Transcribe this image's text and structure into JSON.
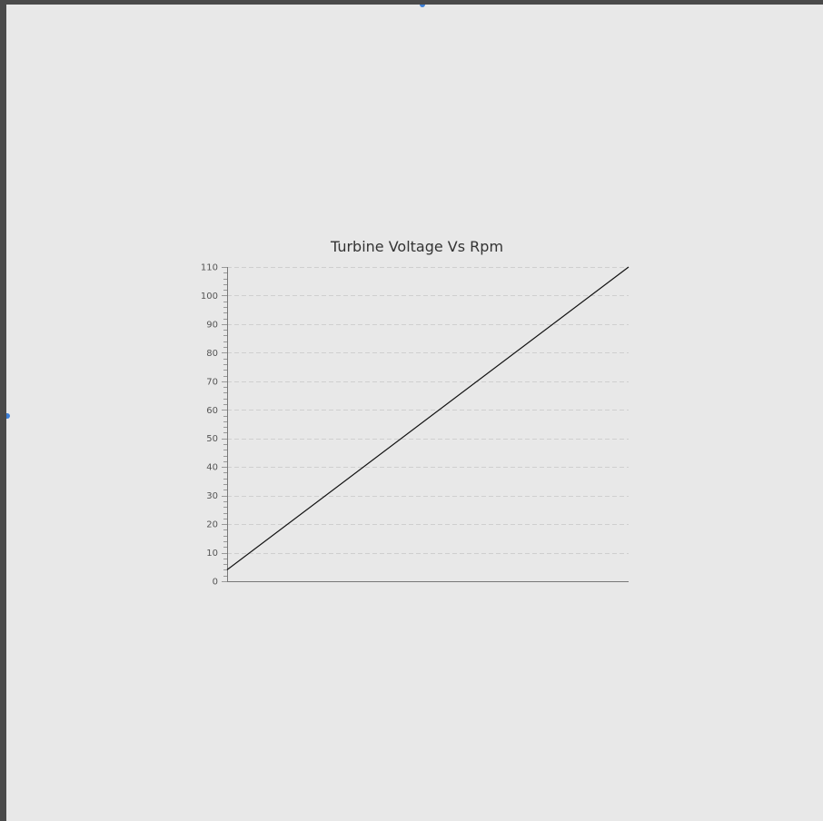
{
  "chart_data": {
    "type": "line",
    "title": "Turbine Voltage Vs Rpm",
    "xlabel": "",
    "ylabel": "",
    "x": [
      0,
      1
    ],
    "series": [
      {
        "values": [
          4,
          110
        ]
      }
    ],
    "xlim": [
      0,
      1
    ],
    "ylim": [
      0,
      110
    ],
    "yticks": [
      0,
      10,
      20,
      30,
      40,
      50,
      60,
      70,
      80,
      90,
      100,
      110
    ],
    "ytick_labels": [
      "0",
      "10",
      "20",
      "30",
      "40",
      "50",
      "60",
      "70",
      "80",
      "90",
      "100",
      "110"
    ],
    "grid": true,
    "legend": "none",
    "colors": {
      "line": "#111111",
      "grid": "#cfcfcf",
      "axis": "#777777",
      "background": "#e8e8e8"
    }
  }
}
